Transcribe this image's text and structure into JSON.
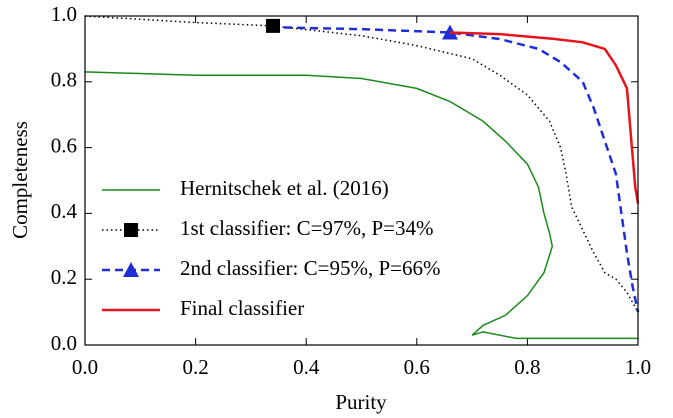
{
  "chart_data": {
    "type": "line",
    "xlabel": "Purity",
    "ylabel": "Completeness",
    "xlim": [
      0,
      1
    ],
    "ylim": [
      0,
      1
    ],
    "xticks": [
      {
        "value": 0,
        "label": "0.0"
      },
      0.2,
      0.4,
      0.6,
      0.8,
      {
        "value": 1,
        "label": "1.0"
      }
    ],
    "yticks": [
      {
        "value": 0,
        "label": "0.0"
      },
      0.2,
      0.4,
      0.6,
      0.8,
      {
        "value": 1,
        "label": "1.0"
      }
    ],
    "legend": "lower left",
    "series": [
      {
        "name": "Hernitschek et al. (2016)",
        "color": "#1a8a1a",
        "linestyle": "solid",
        "x": [
          0,
          0.2,
          0.4,
          0.5,
          0.6,
          0.66,
          0.72,
          0.76,
          0.8,
          0.82,
          0.83,
          0.84,
          0.845,
          0.83,
          0.8,
          0.76,
          0.72,
          0.7,
          0.72,
          0.78,
          1.0
        ],
        "values": [
          0.83,
          0.82,
          0.82,
          0.81,
          0.78,
          0.74,
          0.68,
          0.62,
          0.55,
          0.48,
          0.4,
          0.34,
          0.3,
          0.22,
          0.15,
          0.09,
          0.06,
          0.03,
          0.04,
          0.02,
          0.02
        ]
      },
      {
        "name": "1st classifier: C=97%, P=34%",
        "color": "#000000",
        "linestyle": "dotted",
        "marker": "square",
        "marker_x": 0.34,
        "marker_y": 0.97,
        "x": [
          0,
          0.1,
          0.2,
          0.34,
          0.5,
          0.6,
          0.7,
          0.75,
          0.8,
          0.84,
          0.86,
          0.87,
          0.88,
          0.9,
          0.92,
          0.94,
          0.96,
          0.98,
          1.0
        ],
        "values": [
          1.0,
          0.99,
          0.98,
          0.97,
          0.94,
          0.91,
          0.87,
          0.82,
          0.76,
          0.68,
          0.6,
          0.52,
          0.42,
          0.35,
          0.28,
          0.22,
          0.2,
          0.16,
          0.1
        ]
      },
      {
        "name": "2nd classifier: C=95%, P=66%",
        "color": "#1f2fd6",
        "linestyle": "dashed",
        "marker": "triangle",
        "marker_x": 0.66,
        "marker_y": 0.95,
        "x": [
          0.36,
          0.5,
          0.66,
          0.75,
          0.82,
          0.86,
          0.9,
          0.92,
          0.94,
          0.96,
          0.97,
          0.98,
          0.99,
          1.0
        ],
        "values": [
          0.965,
          0.96,
          0.95,
          0.93,
          0.9,
          0.86,
          0.8,
          0.72,
          0.62,
          0.52,
          0.4,
          0.28,
          0.18,
          0.1
        ]
      },
      {
        "name": "Final classifier",
        "color": "#e8141c",
        "linestyle": "solid",
        "x": [
          0.66,
          0.75,
          0.85,
          0.9,
          0.94,
          0.96,
          0.98,
          0.985,
          0.99,
          0.995,
          1.0
        ],
        "values": [
          0.95,
          0.945,
          0.93,
          0.92,
          0.9,
          0.85,
          0.78,
          0.68,
          0.58,
          0.48,
          0.43
        ]
      }
    ]
  }
}
